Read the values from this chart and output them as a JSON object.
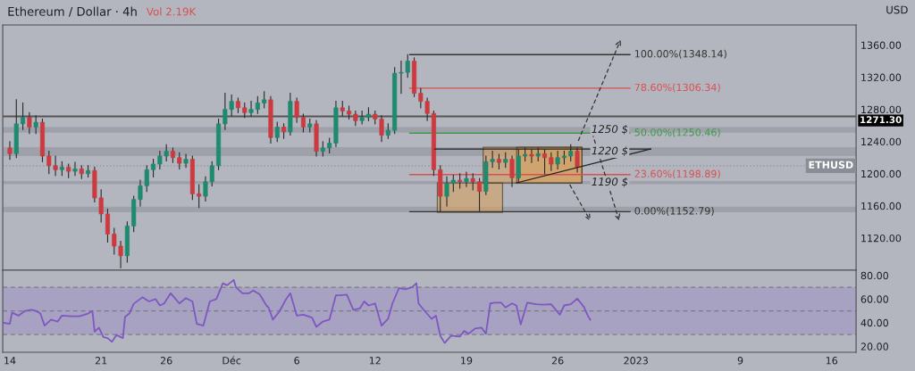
{
  "chart_data": [
    {
      "type": "candlestick",
      "title": "Ethereum / Dollar · 4h",
      "ylabel": "USD",
      "annotations": [
        "Vol 2.19K"
      ],
      "colors": [
        "#cc3a3f",
        "#1e8a6e",
        "#1e8a6e",
        "#cc3a3f",
        "#1e8a6e",
        "#cc3a3f",
        "#cc3a3f",
        "#cc3a3f",
        "#1e8a6e",
        "#cc3a3f",
        "#1e8a6e",
        "#cc3a3f",
        "#1e8a6e",
        "#cc3a3f",
        "#cc3a3f",
        "#cc3a3f",
        "#cc3a3f",
        "#cc3a3f",
        "#1e8a6e",
        "#1e8a6e",
        "#1e8a6e",
        "#1e8a6e",
        "#1e8a6e",
        "#1e8a6e",
        "#1e8a6e",
        "#cc3a3f",
        "#cc3a3f",
        "#1e8a6e",
        "#cc3a3f",
        "#cc3a3f",
        "#1e8a6e",
        "#1e8a6e",
        "#1e8a6e",
        "#1e8a6e",
        "#1e8a6e",
        "#cc3a3f",
        "#cc3a3f",
        "#1e8a6e",
        "#1e8a6e",
        "#1e8a6e",
        "#cc3a3f",
        "#1e8a6e",
        "#cc3a3f",
        "#1e8a6e",
        "#cc3a3f",
        "#cc3a3f",
        "#1e8a6e",
        "#cc3a3f",
        "#1e8a6e",
        "#1e8a6e",
        "#1e8a6e",
        "#cc3a3f",
        "#cc3a3f",
        "#cc3a3f",
        "#1e8a6e",
        "#1e8a6e",
        "#cc3a3f",
        "#cc3a3f",
        "#1e8a6e",
        "#1e8a6e",
        "#1e8a6e",
        "#1e8a6e",
        "#cc3a3f",
        "#cc3a3f",
        "#cc3a3f",
        "#cc3a3f",
        "#cc3a3f",
        "#1e8a6e",
        "#1e8a6e",
        "#cc3a3f",
        "#1e8a6e",
        "#cc3a3f",
        "#cc3a3f",
        "#1e8a6e",
        "#1e8a6e",
        "#cc3a3f",
        "#1e8a6e",
        "#cc3a3f",
        "#1e8a6e",
        "#1e8a6e",
        "#cc3a3f",
        "#1e8a6e",
        "#cc3a3f",
        "#cc3a3f",
        "#1e8a6e",
        "#1e8a6e",
        "#1e8a6e",
        "#cc3a3f"
      ],
      "x": [
        "2022-11-14T00:00",
        "2022-11-14T12:00",
        "2022-11-15T00:00",
        "2022-11-15T12:00",
        "2022-11-16T00:00",
        "2022-11-16T12:00",
        "2022-11-17T00:00",
        "2022-11-17T12:00",
        "2022-11-18T00:00",
        "2022-11-18T12:00",
        "2022-11-19T00:00",
        "2022-11-19T12:00",
        "2022-11-20T00:00",
        "2022-11-20T12:00",
        "2022-11-21T00:00",
        "2022-11-21T12:00",
        "2022-11-22T00:00",
        "2022-11-22T12:00",
        "2022-11-23T00:00",
        "2022-11-23T12:00",
        "2022-11-24T00:00",
        "2022-11-24T12:00",
        "2022-11-25T00:00",
        "2022-11-25T12:00",
        "2022-11-26T00:00",
        "2022-11-26T12:00",
        "2022-11-27T00:00",
        "2022-11-27T12:00",
        "2022-11-28T00:00",
        "2022-11-28T12:00",
        "2022-11-29T00:00",
        "2022-11-29T12:00",
        "2022-11-30T00:00",
        "2022-11-30T12:00",
        "2022-12-01T00:00",
        "2022-12-01T12:00",
        "2022-12-02T00:00",
        "2022-12-02T12:00",
        "2022-12-03T00:00",
        "2022-12-03T12:00",
        "2022-12-04T00:00",
        "2022-12-04T12:00",
        "2022-12-05T00:00",
        "2022-12-05T12:00",
        "2022-12-06T00:00",
        "2022-12-06T12:00",
        "2022-12-07T00:00",
        "2022-12-07T12:00",
        "2022-12-08T00:00",
        "2022-12-08T12:00",
        "2022-12-09T00:00",
        "2022-12-09T12:00",
        "2022-12-10T00:00",
        "2022-12-10T12:00",
        "2022-12-11T00:00",
        "2022-12-11T12:00",
        "2022-12-12T00:00",
        "2022-12-12T12:00",
        "2022-12-13T00:00",
        "2022-12-13T12:00",
        "2022-12-14T00:00",
        "2022-12-14T12:00",
        "2022-12-15T00:00",
        "2022-12-15T12:00",
        "2022-12-16T00:00",
        "2022-12-16T12:00",
        "2022-12-17T00:00",
        "2022-12-17T12:00",
        "2022-12-18T00:00",
        "2022-12-18T12:00",
        "2022-12-19T00:00",
        "2022-12-19T12:00",
        "2022-12-20T00:00",
        "2022-12-20T12:00",
        "2022-12-21T00:00",
        "2022-12-21T12:00",
        "2022-12-22T00:00",
        "2022-12-22T12:00",
        "2022-12-23T00:00",
        "2022-12-23T12:00",
        "2022-12-24T00:00",
        "2022-12-24T12:00",
        "2022-12-25T00:00",
        "2022-12-25T12:00",
        "2022-12-26T00:00",
        "2022-12-26T12:00",
        "2022-12-27T00:00",
        "2022-12-27T12:00"
      ],
      "ohlc": [
        [
          1232,
          1240,
          1218,
          1225
        ],
        [
          1225,
          1292,
          1220,
          1262
        ],
        [
          1262,
          1288,
          1255,
          1270
        ],
        [
          1270,
          1276,
          1250,
          1258
        ],
        [
          1258,
          1272,
          1250,
          1264
        ],
        [
          1264,
          1268,
          1215,
          1222
        ],
        [
          1222,
          1228,
          1200,
          1210
        ],
        [
          1210,
          1222,
          1198,
          1205
        ],
        [
          1205,
          1215,
          1198,
          1208
        ],
        [
          1208,
          1212,
          1195,
          1203
        ],
        [
          1203,
          1214,
          1198,
          1206
        ],
        [
          1206,
          1210,
          1194,
          1200
        ],
        [
          1200,
          1210,
          1196,
          1204
        ],
        [
          1204,
          1208,
          1165,
          1170
        ],
        [
          1170,
          1180,
          1140,
          1150
        ],
        [
          1150,
          1156,
          1115,
          1125
        ],
        [
          1125,
          1132,
          1100,
          1110
        ],
        [
          1110,
          1116,
          1083,
          1098
        ],
        [
          1098,
          1140,
          1090,
          1135
        ],
        [
          1135,
          1172,
          1128,
          1168
        ],
        [
          1168,
          1192,
          1160,
          1185
        ],
        [
          1185,
          1210,
          1178,
          1205
        ],
        [
          1205,
          1218,
          1196,
          1212
        ],
        [
          1212,
          1228,
          1206,
          1222
        ],
        [
          1222,
          1236,
          1216,
          1228
        ],
        [
          1228,
          1232,
          1214,
          1220
        ],
        [
          1220,
          1226,
          1206,
          1213
        ],
        [
          1213,
          1224,
          1208,
          1218
        ],
        [
          1218,
          1222,
          1168,
          1175
        ],
        [
          1175,
          1186,
          1158,
          1172
        ],
        [
          1172,
          1196,
          1166,
          1190
        ],
        [
          1190,
          1215,
          1185,
          1210
        ],
        [
          1210,
          1268,
          1205,
          1262
        ],
        [
          1262,
          1300,
          1255,
          1280
        ],
        [
          1280,
          1298,
          1272,
          1290
        ],
        [
          1290,
          1294,
          1276,
          1282
        ],
        [
          1282,
          1288,
          1270,
          1276
        ],
        [
          1276,
          1290,
          1272,
          1280
        ],
        [
          1280,
          1296,
          1275,
          1288
        ],
        [
          1288,
          1302,
          1282,
          1292
        ],
        [
          1292,
          1296,
          1238,
          1245
        ],
        [
          1245,
          1264,
          1240,
          1258
        ],
        [
          1258,
          1262,
          1244,
          1252
        ],
        [
          1252,
          1300,
          1248,
          1290
        ],
        [
          1290,
          1294,
          1264,
          1270
        ],
        [
          1270,
          1274,
          1252,
          1258
        ],
        [
          1258,
          1268,
          1252,
          1262
        ],
        [
          1262,
          1266,
          1222,
          1228
        ],
        [
          1228,
          1240,
          1222,
          1232
        ],
        [
          1232,
          1244,
          1226,
          1238
        ],
        [
          1238,
          1290,
          1234,
          1282
        ],
        [
          1282,
          1290,
          1272,
          1278
        ],
        [
          1278,
          1284,
          1268,
          1274
        ],
        [
          1274,
          1278,
          1260,
          1266
        ],
        [
          1266,
          1278,
          1262,
          1270
        ],
        [
          1270,
          1282,
          1266,
          1274
        ],
        [
          1274,
          1278,
          1262,
          1268
        ],
        [
          1268,
          1272,
          1240,
          1248
        ],
        [
          1248,
          1262,
          1244,
          1254
        ],
        [
          1254,
          1332,
          1250,
          1325
        ],
        [
          1325,
          1340,
          1300,
          1326
        ],
        [
          1326,
          1348.14,
          1320,
          1340
        ],
        [
          1340,
          1344,
          1296,
          1300
        ],
        [
          1300,
          1306,
          1282,
          1290
        ],
        [
          1290,
          1294,
          1266,
          1275
        ],
        [
          1275,
          1278,
          1198,
          1205
        ],
        [
          1205,
          1210,
          1152.79,
          1172
        ],
        [
          1172,
          1196,
          1160,
          1188
        ],
        [
          1188,
          1198,
          1178,
          1192
        ],
        [
          1192,
          1200,
          1182,
          1190
        ],
        [
          1190,
          1202,
          1184,
          1194
        ],
        [
          1194,
          1200,
          1180,
          1190
        ],
        [
          1190,
          1194,
          1154,
          1178
        ],
        [
          1178,
          1222,
          1174,
          1215
        ],
        [
          1215,
          1228,
          1208,
          1218
        ],
        [
          1218,
          1224,
          1206,
          1214
        ],
        [
          1214,
          1226,
          1208,
          1218
        ],
        [
          1218,
          1222,
          1184,
          1195
        ],
        [
          1195,
          1230,
          1190,
          1222
        ],
        [
          1222,
          1232,
          1216,
          1224
        ],
        [
          1224,
          1230,
          1214,
          1222
        ],
        [
          1222,
          1232,
          1216,
          1225
        ],
        [
          1225,
          1230,
          1200,
          1220
        ],
        [
          1220,
          1226,
          1204,
          1212
        ],
        [
          1212,
          1228,
          1206,
          1220
        ],
        [
          1220,
          1228,
          1212,
          1222
        ],
        [
          1222,
          1236,
          1216,
          1228
        ],
        [
          1228,
          1232,
          1202,
          1208
        ]
      ],
      "xlim": [
        "2022-11-13T11:00",
        "2023-01-17T21:00"
      ],
      "ylim": [
        1080,
        1385
      ],
      "yticks": [
        {
          "value": 1120,
          "label": "1120.00"
        },
        {
          "value": 1160,
          "label": "1160.00"
        },
        {
          "value": 1200,
          "label": "1200.00"
        },
        {
          "value": 1240,
          "label": "1240.00"
        },
        {
          "value": 1280,
          "label": "1280.00"
        },
        {
          "value": 1320,
          "label": "1320.00"
        },
        {
          "value": 1360,
          "label": "1360.00"
        }
      ],
      "tick_labels": "y",
      "ref_lines": [
        {
          "axis": "y",
          "value": 1348.14,
          "label": "100.00%(1348.14)",
          "color": "#333333",
          "line_style": "solid"
        },
        {
          "axis": "y",
          "value": 1306.34,
          "label": "78.60%(1306.34)",
          "color": "#d9504f",
          "line_style": "solid"
        },
        {
          "axis": "y",
          "value": 1250.46,
          "label": "50.00%(1250.46)",
          "color": "#3f9a48",
          "line_style": "solid"
        },
        {
          "axis": "y",
          "value": 1198.89,
          "label": "23.60%(1198.89)",
          "color": "#d9504f",
          "line_style": "solid"
        },
        {
          "axis": "y",
          "value": 1152.79,
          "label": "0.00%(1152.79)",
          "color": "#333333",
          "line_style": "solid"
        },
        {
          "axis": "y",
          "value": 1271.3,
          "label": "1271.30",
          "color": "#555555",
          "line_style": "solid"
        },
        {
          "axis": "y",
          "value": 1210,
          "label": "ETHUSD",
          "color": "#8a8d96",
          "line_style": "dotted"
        }
      ],
      "bands": [
        {
          "axis": "y",
          "from": 1251,
          "to": 1258,
          "label": "1250 $",
          "color": "#8e9099"
        },
        {
          "axis": "y",
          "from": 1222,
          "to": 1233,
          "label": "1220 $",
          "color": "#8e9099"
        },
        {
          "axis": "y",
          "from": 1187,
          "to": 1191,
          "label": "1190 $",
          "color": "#8e9099"
        },
        {
          "axis": "y",
          "from": 1152,
          "to": 1159,
          "color": "#8e9099"
        }
      ]
    },
    {
      "type": "line",
      "series": [
        {
          "color": "#7e57c2",
          "values": [
            40,
            39,
            48.5,
            46,
            50,
            51,
            50,
            48,
            37.5,
            42.6,
            41,
            46,
            45.4,
            45.4,
            47.8,
            50,
            32.4,
            35.8,
            28,
            27,
            23.8,
            29.6,
            27,
            45,
            47.8,
            56,
            61.5,
            58,
            60,
            54.6,
            56.3,
            64.9,
            56.3,
            60.8,
            58,
            39,
            37.5,
            58,
            60,
            73.4,
            71.7,
            76.2,
            70,
            64.9,
            64.9,
            67.3,
            63.8,
            54.6,
            52.9,
            42.6,
            49.5,
            59.7,
            64.9,
            46,
            46.8,
            44.4,
            36.5,
            41,
            42.6,
            63.2,
            63.2,
            63.8,
            51,
            52,
            58,
            54.6,
            56.3,
            37.5,
            43.3,
            56.3,
            69.3,
            68.3,
            70,
            73.4,
            56.3,
            49.5,
            43.3,
            46,
            29,
            22.8,
            29,
            28.3,
            33,
            30.7,
            35.1,
            35.8,
            30.7,
            56.3,
            57,
            57,
            52.9,
            56.3,
            54.6,
            38.5,
            57,
            55.6,
            55.3,
            55.6,
            46.8,
            54.6,
            55.6,
            60.4,
            53.6,
            45.4,
            42.6
          ]
        }
      ],
      "x": [
        "2022-11-13T12:00",
        "2022-11-14T00:00",
        "2022-11-14T04:00",
        "2022-11-14T16:00",
        "2022-11-15T04:00",
        "2022-11-15T16:00",
        "2022-11-16T00:00",
        "2022-11-16T08:00",
        "2022-11-16T16:00",
        "2022-11-17T04:00",
        "2022-11-17T16:00",
        "2022-11-18T00:00",
        "2022-11-18T16:00",
        "2022-11-19T08:00",
        "2022-11-20T00:00",
        "2022-11-20T08:00",
        "2022-11-20T12:00",
        "2022-11-20T20:00",
        "2022-11-21T04:00",
        "2022-11-21T12:00",
        "2022-11-21T20:00",
        "2022-11-22T04:00",
        "2022-11-22T16:00",
        "2022-11-22T20:00",
        "2022-11-23T04:00",
        "2022-11-23T12:00",
        "2022-11-24T04:00",
        "2022-11-24T16:00",
        "2022-11-25T04:00",
        "2022-11-25T12:00",
        "2022-11-25T20:00",
        "2022-11-26T08:00",
        "2022-11-27T00:00",
        "2022-11-27T12:00",
        "2022-11-28T00:00",
        "2022-11-28T08:00",
        "2022-11-28T20:00",
        "2022-11-29T08:00",
        "2022-11-29T20:00",
        "2022-11-30T08:00",
        "2022-11-30T16:00",
        "2022-12-01T04:00",
        "2022-12-01T08:00",
        "2022-12-01T20:00",
        "2022-12-02T08:00",
        "2022-12-02T16:00",
        "2022-12-03T04:00",
        "2022-12-03T16:00",
        "2022-12-03T20:00",
        "2022-12-04T04:00",
        "2022-12-04T16:00",
        "2022-12-05T04:00",
        "2022-12-05T12:00",
        "2022-12-06T00:00",
        "2022-12-06T12:00",
        "2022-12-07T04:00",
        "2022-12-07T12:00",
        "2022-12-08T00:00",
        "2022-12-08T12:00",
        "2022-12-09T00:00",
        "2022-12-09T08:00",
        "2022-12-09T20:00",
        "2022-12-10T08:00",
        "2022-12-10T20:00",
        "2022-12-11T04:00",
        "2022-12-11T12:00",
        "2022-12-12T00:00",
        "2022-12-12T12:00",
        "2022-12-13T00:00",
        "2022-12-13T08:00",
        "2022-12-13T20:00",
        "2022-12-14T08:00",
        "2022-12-14T20:00",
        "2022-12-15T04:00",
        "2022-12-15T08:00",
        "2022-12-15T20:00",
        "2022-12-16T08:00",
        "2022-12-16T16:00",
        "2022-12-17T00:00",
        "2022-12-17T08:00",
        "2022-12-17T20:00",
        "2022-12-18T12:00",
        "2022-12-18T20:00",
        "2022-12-19T04:00",
        "2022-12-19T16:00",
        "2022-12-20T04:00",
        "2022-12-20T12:00",
        "2022-12-20T20:00",
        "2022-12-21T04:00",
        "2022-12-21T16:00",
        "2022-12-22T00:00",
        "2022-12-22T12:00",
        "2022-12-22T20:00",
        "2022-12-23T04:00",
        "2022-12-23T16:00",
        "2022-12-24T08:00",
        "2022-12-24T20:00",
        "2022-12-25T12:00",
        "2022-12-26T04:00",
        "2022-12-26T12:00",
        "2022-12-27T00:00",
        "2022-12-27T12:00",
        "2022-12-28T00:00",
        "2022-12-28T08:00",
        "2022-12-28T12:00"
      ],
      "xlim": [
        "2022-11-13T11:00",
        "2023-01-17T21:00"
      ],
      "xticks": [
        {
          "value": "2022-11-14",
          "label": "14"
        },
        {
          "value": "2022-11-21",
          "label": "21"
        },
        {
          "value": "2022-11-26",
          "label": "26"
        },
        {
          "value": "2022-12-01",
          "label": "Déc"
        },
        {
          "value": "2022-12-06",
          "label": "6"
        },
        {
          "value": "2022-12-12",
          "label": "12"
        },
        {
          "value": "2022-12-19",
          "label": "19"
        },
        {
          "value": "2022-12-26",
          "label": "26"
        },
        {
          "value": "2023-01-01",
          "label": "2023"
        },
        {
          "value": "2023-01-09",
          "label": "9"
        },
        {
          "value": "2023-01-16",
          "label": "16"
        }
      ],
      "ylim": [
        15,
        84.4
      ],
      "yticks": [
        {
          "value": 20,
          "label": "20.00"
        },
        {
          "value": 40,
          "label": "40.00"
        },
        {
          "value": 60,
          "label": "60.00"
        },
        {
          "value": 80,
          "label": "80.00"
        }
      ],
      "ref_lines": [
        {
          "axis": "y",
          "value": 70,
          "color": "#7a7d86",
          "line_style": "dashed"
        },
        {
          "axis": "y",
          "value": 50,
          "color": "#7a7d86",
          "line_style": "dashed"
        },
        {
          "axis": "y",
          "value": 30,
          "color": "#7a7d86",
          "line_style": "dashed"
        }
      ],
      "bands": [
        {
          "axis": "y",
          "from": 30,
          "to": 70,
          "color": "#9c8fc4"
        }
      ]
    }
  ]
}
